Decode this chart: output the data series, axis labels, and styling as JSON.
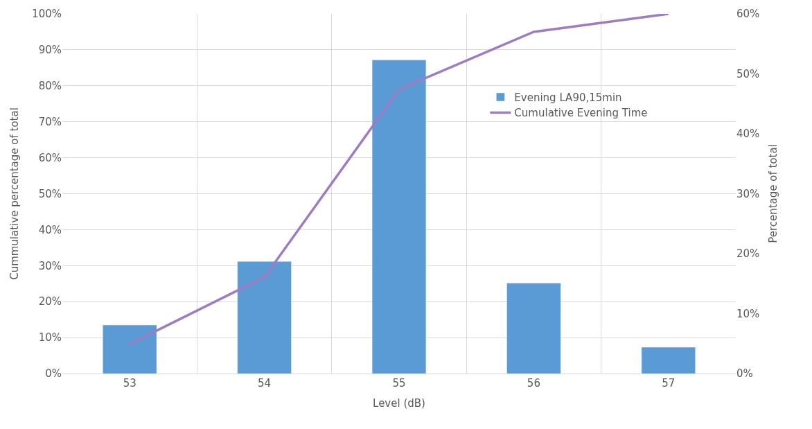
{
  "chart_data": {
    "type": "bar",
    "xlabel": "Level (dB)",
    "ylabel": "Cummulative percentage of total",
    "y2label": "Percentage of total",
    "categories": [
      "53",
      "54",
      "55",
      "56",
      "57"
    ],
    "series": [
      {
        "name": "Evening LA90,15min",
        "axis": "y2",
        "color": "#5b9bd5",
        "values": [
          8.1,
          18.7,
          52.3,
          15.1,
          4.4
        ]
      },
      {
        "name": "Cumulative Evening Time",
        "type": "line",
        "axis": "y",
        "color": "#9e7cc1",
        "values": [
          8.2,
          26.8,
          79,
          95,
          100
        ]
      }
    ],
    "ylim": [
      0,
      100
    ],
    "yticks": [
      {
        "value": 0,
        "label": "0%"
      },
      {
        "value": 10,
        "label": "10%"
      },
      {
        "value": 20,
        "label": "20%"
      },
      {
        "value": 30,
        "label": "30%"
      },
      {
        "value": 40,
        "label": "40%"
      },
      {
        "value": 50,
        "label": "50%"
      },
      {
        "value": 60,
        "label": "60%"
      },
      {
        "value": 70,
        "label": "70%"
      },
      {
        "value": 80,
        "label": "80%"
      },
      {
        "value": 90,
        "label": "90%"
      },
      {
        "value": 100,
        "label": "100%"
      }
    ],
    "y2lim": [
      0,
      60
    ],
    "y2ticks": [
      {
        "value": 0,
        "label": "0%"
      },
      {
        "value": 10,
        "label": "10%"
      },
      {
        "value": 20,
        "label": "20%"
      },
      {
        "value": 30,
        "label": "30%"
      },
      {
        "value": 40,
        "label": "40%"
      },
      {
        "value": 50,
        "label": "50%"
      },
      {
        "value": 60,
        "label": "60%"
      }
    ],
    "grid": true,
    "legend": "top right",
    "marker": "none",
    "line_style": "solid"
  }
}
